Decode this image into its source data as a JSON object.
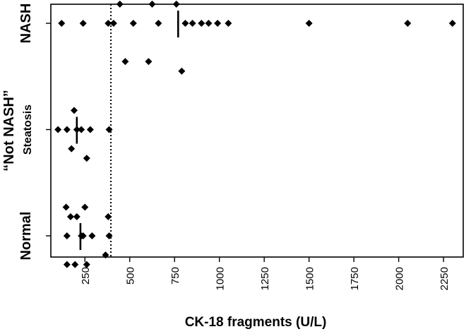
{
  "chart_data": {
    "type": "scatter",
    "title": "",
    "xlabel": "CK-18 fragments (U/L)",
    "ylabel": "",
    "xlim": [
      60,
      2360
    ],
    "x_ticks": [
      250,
      500,
      750,
      1000,
      1250,
      1500,
      1750,
      2000,
      2250
    ],
    "categories": [
      "Normal",
      "Steatosis",
      "NASH"
    ],
    "category_title": "“Not NASH”",
    "cutoff": 395,
    "series": [
      {
        "name": "NASH",
        "points": [
          {
            "x": 120,
            "y": 1.0
          },
          {
            "x": 240,
            "y": 1.0
          },
          {
            "x": 380,
            "y": 1.0
          },
          {
            "x": 410,
            "y": 1.0
          },
          {
            "x": 445,
            "y": 1.02
          },
          {
            "x": 475,
            "y": 0.96
          },
          {
            "x": 520,
            "y": 1.0
          },
          {
            "x": 605,
            "y": 0.96
          },
          {
            "x": 625,
            "y": 1.02
          },
          {
            "x": 660,
            "y": 1.0
          },
          {
            "x": 760,
            "y": 1.02
          },
          {
            "x": 790,
            "y": 0.95
          },
          {
            "x": 810,
            "y": 1.0
          },
          {
            "x": 850,
            "y": 1.0
          },
          {
            "x": 900,
            "y": 1.0
          },
          {
            "x": 940,
            "y": 1.0
          },
          {
            "x": 990,
            "y": 1.0
          },
          {
            "x": 1050,
            "y": 1.0
          },
          {
            "x": 1500,
            "y": 1.0
          },
          {
            "x": 2050,
            "y": 1.0
          },
          {
            "x": 2300,
            "y": 1.0
          }
        ],
        "median": 770
      },
      {
        "name": "Steatosis",
        "points": [
          {
            "x": 100,
            "y": 0.5
          },
          {
            "x": 150,
            "y": 0.5
          },
          {
            "x": 175,
            "y": 0.48
          },
          {
            "x": 190,
            "y": 0.52
          },
          {
            "x": 205,
            "y": 0.5
          },
          {
            "x": 230,
            "y": 0.5
          },
          {
            "x": 260,
            "y": 0.47
          },
          {
            "x": 280,
            "y": 0.5
          },
          {
            "x": 385,
            "y": 0.5
          }
        ],
        "median": 205
      },
      {
        "name": "Normal",
        "points": [
          {
            "x": 145,
            "y": 0.03
          },
          {
            "x": 150,
            "y": 0.0
          },
          {
            "x": 170,
            "y": 0.02
          },
          {
            "x": 195,
            "y": -0.03
          },
          {
            "x": 205,
            "y": 0.02
          },
          {
            "x": 230,
            "y": 0.0
          },
          {
            "x": 250,
            "y": 0.03
          },
          {
            "x": 260,
            "y": -0.03
          },
          {
            "x": 290,
            "y": 0.0
          },
          {
            "x": 365,
            "y": -0.02
          },
          {
            "x": 380,
            "y": 0.02
          },
          {
            "x": 385,
            "y": 0.0
          },
          {
            "x": 150,
            "y": -0.03
          },
          {
            "x": 240,
            "y": 0.0
          }
        ],
        "median": 225
      }
    ],
    "grid": false,
    "legend": "none"
  }
}
